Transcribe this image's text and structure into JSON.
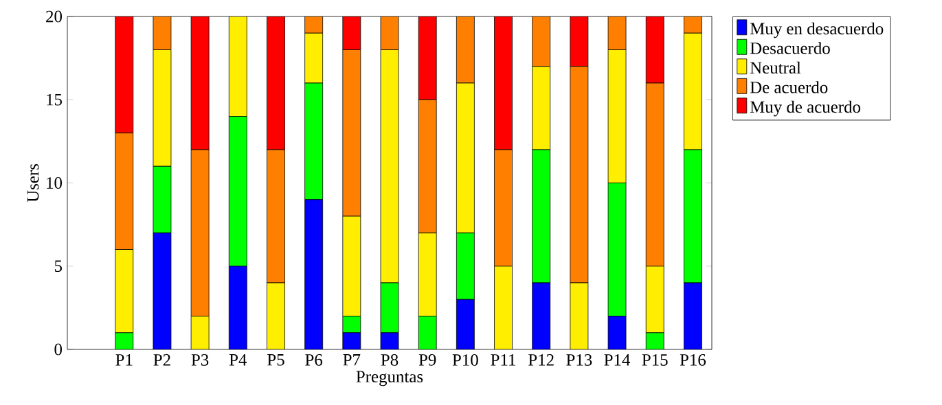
{
  "chart_data": {
    "type": "bar",
    "stacked": true,
    "xlabel": "Preguntas",
    "ylabel": "Users",
    "categories": [
      "P1",
      "P2",
      "P3",
      "P4",
      "P5",
      "P6",
      "P7",
      "P8",
      "P9",
      "P10",
      "P11",
      "P12",
      "P13",
      "P14",
      "P15",
      "P16"
    ],
    "series": [
      {
        "name": "Muy en desacuerdo",
        "color": "#0000ff",
        "values": [
          0,
          7,
          0,
          5,
          0,
          9,
          1,
          1,
          0,
          3,
          0,
          4,
          0,
          2,
          0,
          4
        ]
      },
      {
        "name": "Desacuerdo",
        "color": "#00ff00",
        "values": [
          1,
          4,
          0,
          9,
          0,
          7,
          1,
          3,
          2,
          4,
          0,
          8,
          0,
          8,
          1,
          8
        ]
      },
      {
        "name": "Neutral",
        "color": "#ffee00",
        "values": [
          5,
          7,
          2,
          6,
          4,
          3,
          6,
          14,
          5,
          9,
          5,
          5,
          4,
          8,
          4,
          7
        ]
      },
      {
        "name": "De acuerdo",
        "color": "#ff8000",
        "values": [
          7,
          2,
          10,
          0,
          8,
          1,
          10,
          2,
          8,
          4,
          7,
          3,
          13,
          2,
          11,
          1
        ]
      },
      {
        "name": "Muy de acuerdo",
        "color": "#ff0000",
        "values": [
          7,
          0,
          8,
          0,
          8,
          0,
          2,
          0,
          5,
          0,
          8,
          0,
          3,
          0,
          4,
          0
        ]
      }
    ],
    "ylim": [
      0,
      20
    ],
    "yticks": [
      0,
      5,
      10,
      15,
      20
    ],
    "grid": false,
    "legend": "top right"
  }
}
